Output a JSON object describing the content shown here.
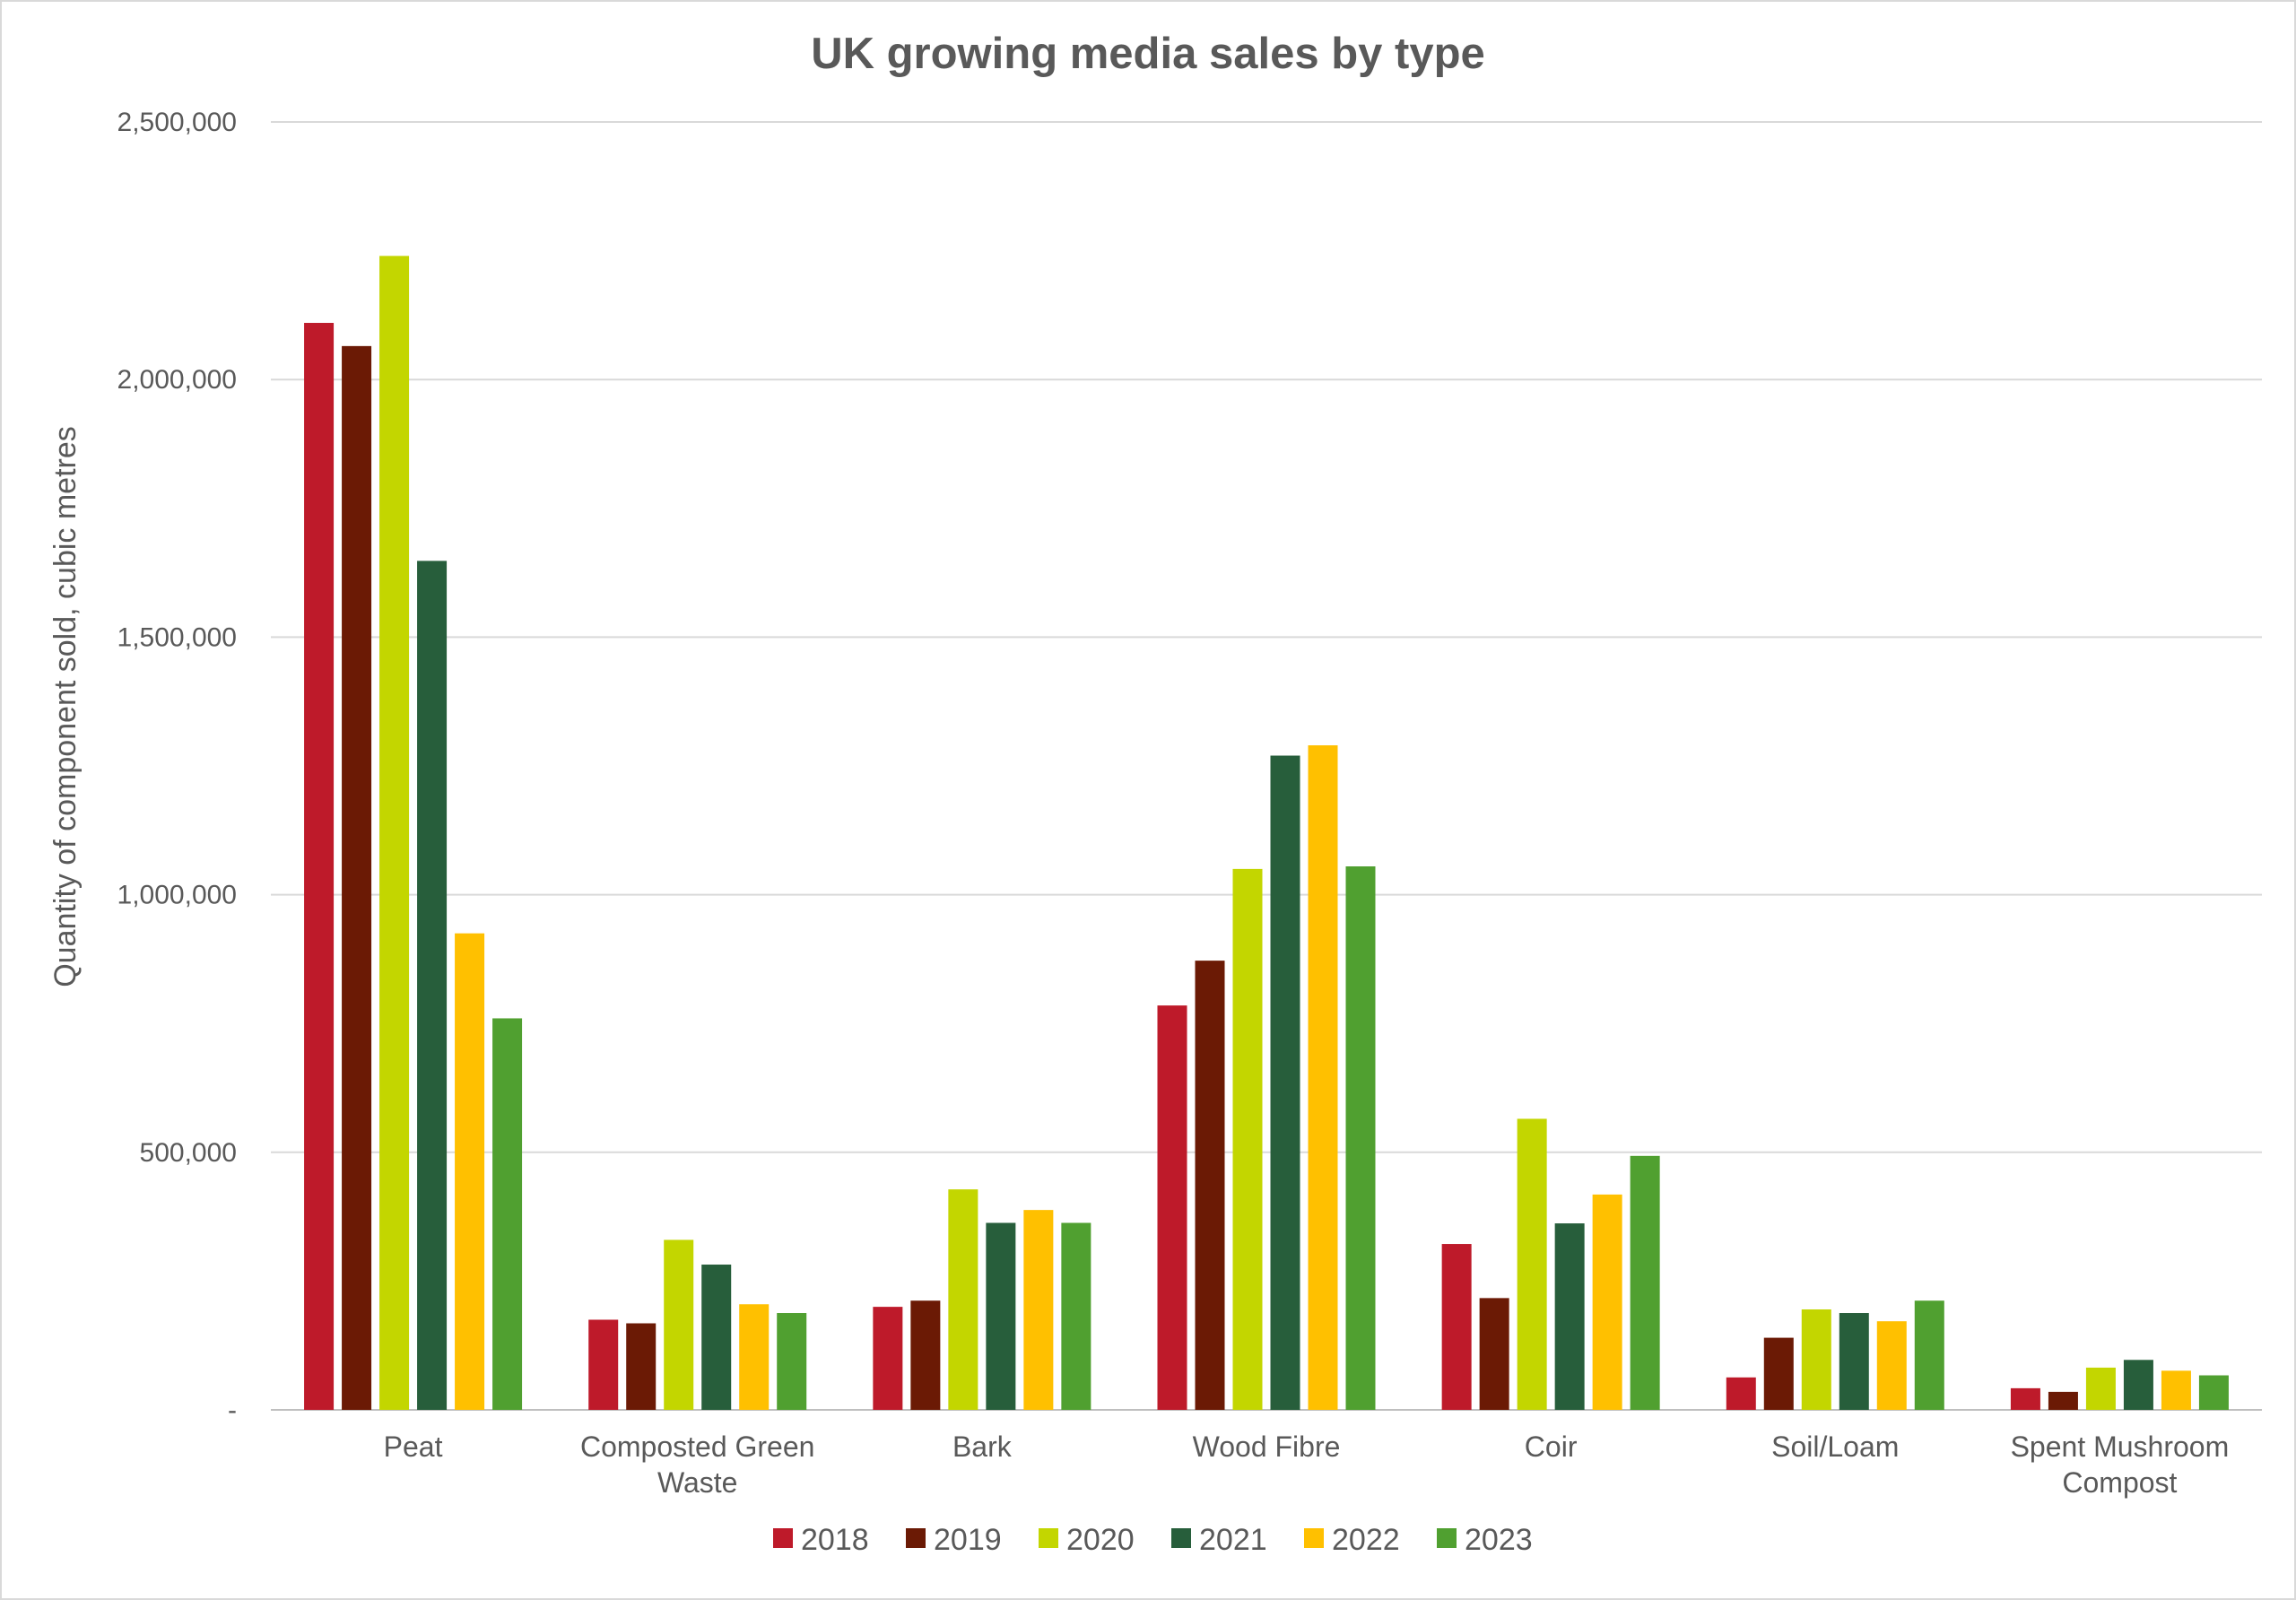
{
  "chart_data": {
    "type": "bar",
    "title": "UK growing media sales by type",
    "xlabel": "",
    "ylabel": "Quantity of component sold, cubic metres",
    "ylim": [
      0,
      2500000
    ],
    "yticks": [
      0,
      500000,
      1000000,
      1500000,
      2000000,
      2500000
    ],
    "ytick_labels": [
      "-",
      "500,000",
      "1,000,000",
      "1,500,000",
      "2,000,000",
      "2,500,000"
    ],
    "grid": true,
    "legend_position": "bottom",
    "categories": [
      [
        "Peat"
      ],
      [
        "Composted Green",
        "Waste"
      ],
      [
        "Bark"
      ],
      [
        "Wood Fibre"
      ],
      [
        "Coir"
      ],
      [
        "Soil/Loam"
      ],
      [
        "Spent Mushroom",
        "Compost"
      ]
    ],
    "series": [
      {
        "name": "2018",
        "color": "#be1a2a",
        "values": [
          2110000,
          175000,
          200000,
          785000,
          322000,
          63000,
          42000
        ]
      },
      {
        "name": "2019",
        "color": "#6b1a05",
        "values": [
          2065000,
          168000,
          212000,
          872000,
          217000,
          140000,
          35000
        ]
      },
      {
        "name": "2020",
        "color": "#c3d600",
        "values": [
          2240000,
          330000,
          428000,
          1050000,
          565000,
          195000,
          82000
        ]
      },
      {
        "name": "2021",
        "color": "#275e3b",
        "values": [
          1648000,
          282000,
          363000,
          1270000,
          362000,
          188000,
          97000
        ]
      },
      {
        "name": "2022",
        "color": "#ffc000",
        "values": [
          925000,
          205000,
          388000,
          1290000,
          418000,
          172000,
          76000
        ]
      },
      {
        "name": "2023",
        "color": "#50a030",
        "values": [
          760000,
          188000,
          363000,
          1055000,
          493000,
          212000,
          67000
        ]
      }
    ]
  }
}
